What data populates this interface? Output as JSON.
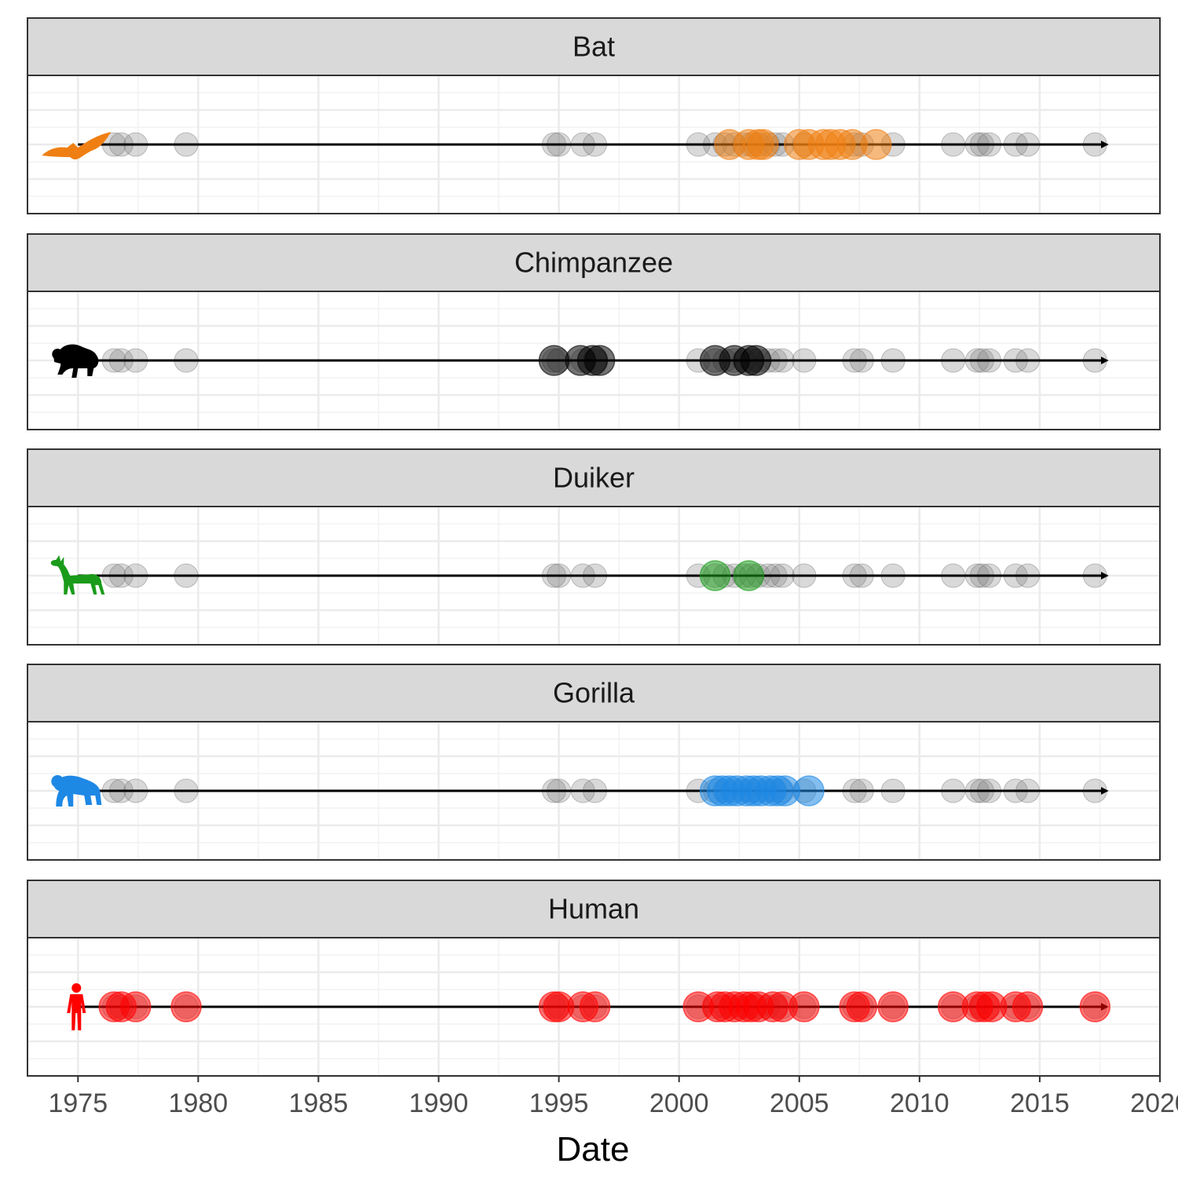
{
  "chart_data": {
    "type": "scatter",
    "subtype": "faceted timeline",
    "xlabel": "Date",
    "xlim": [
      1972.9,
      2020
    ],
    "x_ticks": [
      1975,
      1980,
      1985,
      1990,
      1995,
      2000,
      2005,
      2010,
      2015,
      2020
    ],
    "timeline": {
      "start": 1975,
      "end": 2018,
      "arrow": true
    },
    "grid": true,
    "legend": "none",
    "background_events": [
      1976.5,
      1976.8,
      1977.4,
      1979.5,
      1994.8,
      1995.0,
      1996.0,
      1996.5,
      2000.8,
      2001.5,
      2001.9,
      2002.3,
      2002.7,
      2003.0,
      2003.3,
      2003.7,
      2004.0,
      2004.3,
      2005.2,
      2007.3,
      2007.6,
      2008.9,
      2011.4,
      2012.4,
      2012.6,
      2012.9,
      2014.0,
      2014.5,
      2017.3
    ],
    "panels": [
      {
        "name": "Bat",
        "icon": "bat-icon",
        "color": "#EF7F12",
        "events": [
          2002.1,
          2002.9,
          2003.3,
          2003.5,
          2005.0,
          2005.4,
          2006.0,
          2006.3,
          2006.7,
          2007.2,
          2008.2
        ]
      },
      {
        "name": "Chimpanzee",
        "icon": "chimpanzee-icon",
        "color": "#000000",
        "events": [
          1994.8,
          1995.9,
          1996.4,
          1996.7,
          2001.5,
          2002.3,
          2002.9,
          2003.2
        ]
      },
      {
        "name": "Duiker",
        "icon": "duiker-icon",
        "color": "#1A9B1A",
        "events": [
          2001.5,
          2002.9
        ]
      },
      {
        "name": "Gorilla",
        "icon": "gorilla-icon",
        "color": "#1E88E5",
        "events": [
          2001.5,
          2001.8,
          2002.1,
          2002.4,
          2002.8,
          2003.1,
          2003.4,
          2003.8,
          2004.1,
          2004.4,
          2005.4
        ]
      },
      {
        "name": "Human",
        "icon": "human-icon",
        "color": "#FF0000",
        "events": [
          1976.5,
          1976.8,
          1977.4,
          1979.5,
          1994.8,
          1995.0,
          1996.0,
          1996.5,
          2000.8,
          2001.6,
          2001.9,
          2002.3,
          2002.7,
          2003.0,
          2003.3,
          2003.9,
          2004.3,
          2005.2,
          2007.3,
          2007.6,
          2008.9,
          2011.4,
          2012.4,
          2012.7,
          2013.0,
          2014.0,
          2014.5,
          2017.3
        ]
      }
    ]
  }
}
